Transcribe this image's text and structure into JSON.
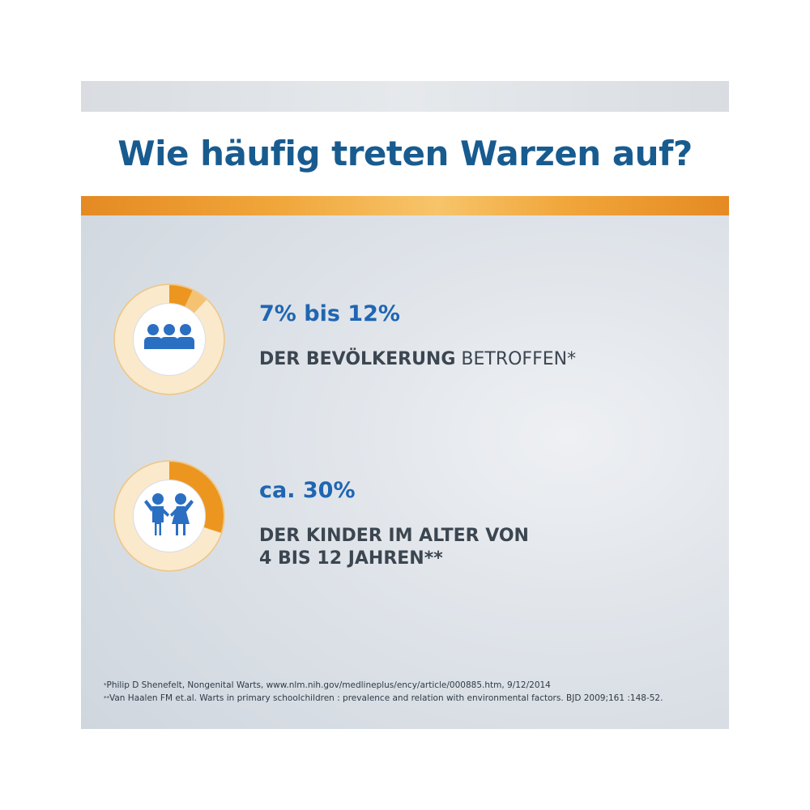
{
  "title": "Wie häufig treten Warzen auf?",
  "colors": {
    "title_blue": "#185b8f",
    "value_blue": "#1f66b2",
    "icon_blue": "#2a6fc2",
    "orange": "#ec9620",
    "light_orange": "#f5c271",
    "ring_cream": "#fbe9cc"
  },
  "stats": [
    {
      "value": "7% bis 12%",
      "desc_bold": "DER BEVÖLKERUNG",
      "desc_regular": " BETROFFEN*",
      "icon": "group-of-people-icon",
      "share_low": 0.07,
      "share_high": 0.12
    },
    {
      "value": "ca. 30%",
      "desc_line1": "DER KINDER IM ALTER VON",
      "desc_line2": "4 BIS 12 JAHREN**",
      "icon": "two-children-icon",
      "share": 0.3
    }
  ],
  "footnotes": [
    {
      "mark": "*",
      "text": "Philip D Shenefelt, Nongenital Warts, www.nlm.nih.gov/medlineplus/ency/article/000885.htm, 9/12/2014"
    },
    {
      "mark": "**",
      "text": "Van Haalen FM et.al. Warts in primary schoolchildren : prevalence and relation with environmental factors. BJD 2009;161 :148-52."
    }
  ]
}
